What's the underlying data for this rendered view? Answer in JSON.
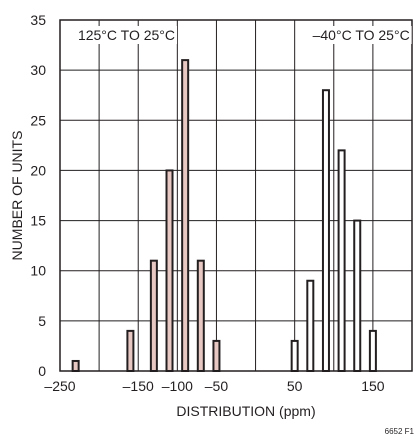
{
  "chart_data": {
    "type": "bar",
    "xlabel": "DISTRIBUTION (ppm)",
    "ylabel": "NUMBER OF UNITS",
    "xlim": [
      -250,
      200
    ],
    "ylim": [
      0,
      35
    ],
    "x_ticks": [
      {
        "value": -250,
        "label": "–250"
      },
      {
        "value": -150,
        "label": "–150"
      },
      {
        "value": -100,
        "label": "–100"
      },
      {
        "value": -50,
        "label": "–50"
      },
      {
        "value": 50,
        "label": "50"
      },
      {
        "value": 150,
        "label": "150"
      }
    ],
    "x_gridlines": [
      -200,
      -150,
      -100,
      -50,
      0,
      50,
      100,
      150
    ],
    "y_ticks": [
      0,
      5,
      10,
      15,
      20,
      25,
      30,
      35
    ],
    "grid": true,
    "series": [
      {
        "name": "125°C TO 25°C",
        "color": "#e8c8c2",
        "x": [
          -230,
          -160,
          -130,
          -110,
          -90,
          -70,
          -50,
          -20
        ],
        "values": [
          1,
          4,
          11,
          20,
          31,
          11,
          3,
          0
        ]
      },
      {
        "name": "–40°C TO 25°C",
        "color": "#ffffff",
        "x": [
          50,
          70,
          90,
          110,
          130,
          150,
          170
        ],
        "values": [
          3,
          9,
          28,
          22,
          15,
          4,
          0
        ]
      }
    ],
    "annotations": [
      "125°C TO 25°C",
      "–40°C TO 25°C"
    ],
    "figure_id": "6652 F1"
  }
}
